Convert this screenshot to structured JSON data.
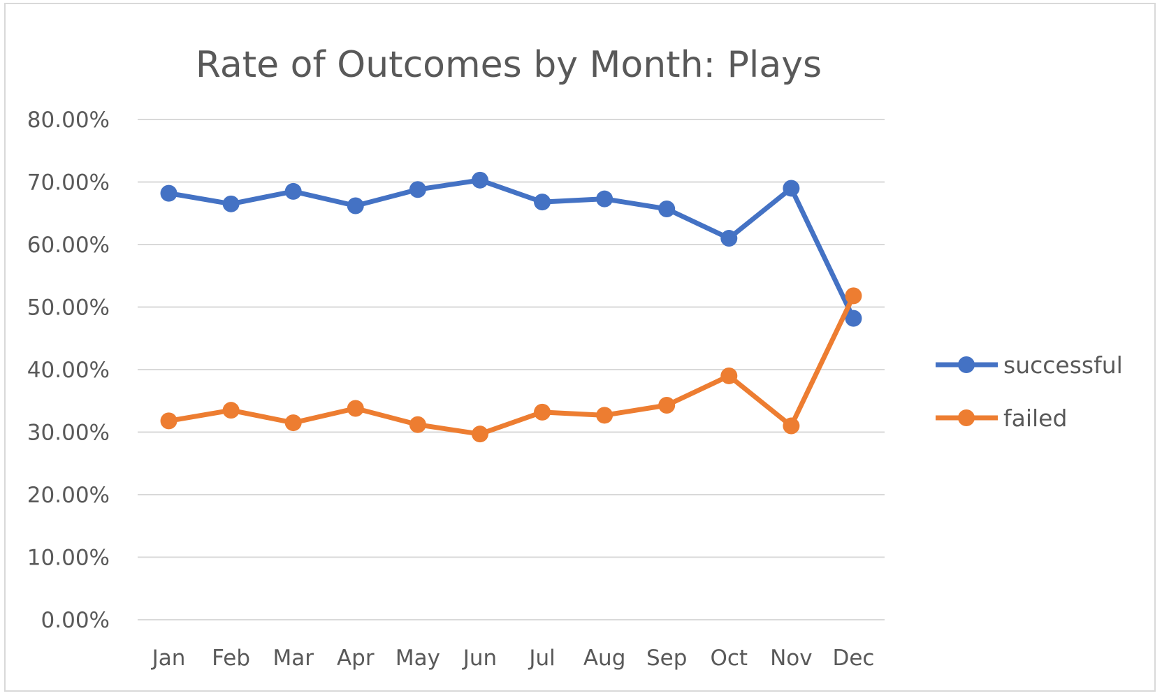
{
  "chart_data": {
    "type": "line",
    "title": "Rate of Outcomes by Month: Plays",
    "xlabel": "",
    "ylabel": "",
    "categories": [
      "Jan",
      "Feb",
      "Mar",
      "Apr",
      "May",
      "Jun",
      "Jul",
      "Aug",
      "Sep",
      "Oct",
      "Nov",
      "Dec"
    ],
    "ylim": [
      0,
      0.8
    ],
    "yticks": [
      {
        "value": 0.0,
        "label": "0.00%"
      },
      {
        "value": 0.1,
        "label": "10.00%"
      },
      {
        "value": 0.2,
        "label": "20.00%"
      },
      {
        "value": 0.3,
        "label": "30.00%"
      },
      {
        "value": 0.4,
        "label": "40.00%"
      },
      {
        "value": 0.5,
        "label": "50.00%"
      },
      {
        "value": 0.6,
        "label": "60.00%"
      },
      {
        "value": 0.7,
        "label": "70.00%"
      },
      {
        "value": 0.8,
        "label": "80.00%"
      }
    ],
    "grid": true,
    "legend_position": "right",
    "series": [
      {
        "name": "successful",
        "color": "#4472C4",
        "values": [
          0.682,
          0.665,
          0.685,
          0.662,
          0.688,
          0.703,
          0.668,
          0.673,
          0.657,
          0.61,
          0.69,
          0.482
        ]
      },
      {
        "name": "failed",
        "color": "#ED7D31",
        "values": [
          0.318,
          0.335,
          0.315,
          0.338,
          0.312,
          0.297,
          0.332,
          0.327,
          0.343,
          0.39,
          0.31,
          0.518
        ]
      }
    ]
  }
}
